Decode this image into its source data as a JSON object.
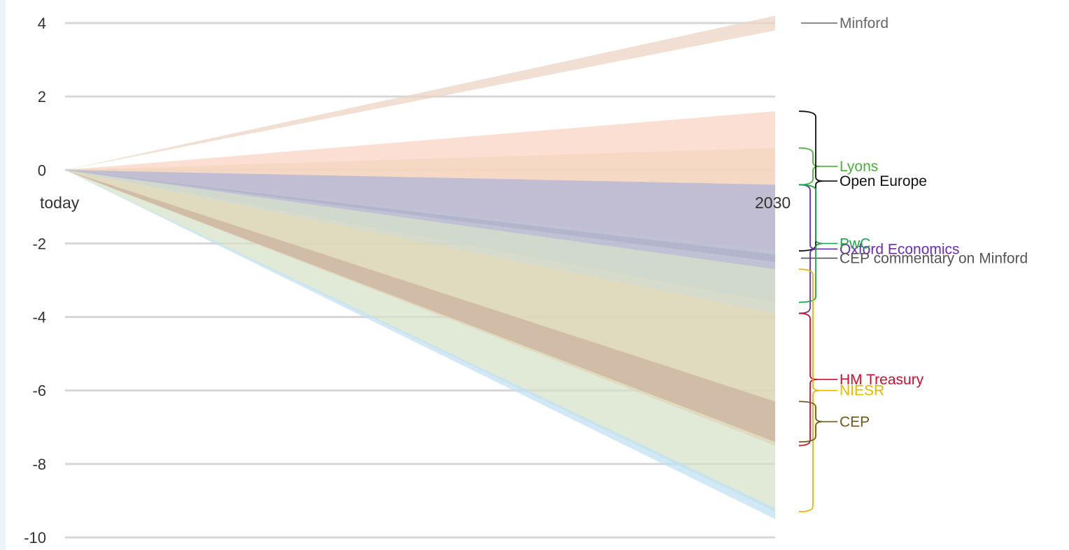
{
  "chart_data": {
    "type": "area",
    "title": "",
    "xlabel": "",
    "ylabel": "",
    "x_labels": {
      "start": "today",
      "end": "2030"
    },
    "ylim": [
      -10,
      4
    ],
    "yticks": [
      "4",
      "2",
      "0",
      "-2",
      "-4",
      "-6",
      "-8",
      "-10"
    ],
    "ytick_values": [
      4,
      2,
      0,
      -2,
      -4,
      -6,
      -8,
      -10
    ],
    "grid": true,
    "series": [
      {
        "name": "Minford",
        "range": [
          3.8,
          4.2
        ],
        "color": "#ebd3c3",
        "label_color": "#666666"
      },
      {
        "name": "Lyons",
        "range": [
          -0.4,
          0.6
        ],
        "color": "#e6e1b8",
        "label_color": "#4caf3a"
      },
      {
        "name": "Open Europe",
        "range": [
          -2.2,
          1.6
        ],
        "color": "#f8d3c0",
        "label_color": "#111111"
      },
      {
        "name": "Oxford Economics",
        "range": [
          -3.9,
          -0.4
        ],
        "color": "#c9b3cf",
        "label_color": "#6a2db0"
      },
      {
        "name": "CEP commentary on Minford",
        "range": [
          -2.5,
          -2.3
        ],
        "color": "#8c8ca3",
        "label_color": "#555555"
      },
      {
        "name": "PwC",
        "range": [
          -3.6,
          -0.4
        ],
        "color": "#b9bed4",
        "label_color": "#1fa84a"
      },
      {
        "name": "HM Treasury",
        "range": [
          -7.5,
          -3.9
        ],
        "color": "#f6b38a",
        "label_color": "#c8102e"
      },
      {
        "name": "NIESR",
        "range": [
          -9.3,
          -2.7
        ],
        "color": "#d5e2c6",
        "label_color": "#e6b800"
      },
      {
        "name": "CEP",
        "range": [
          -7.4,
          -6.3
        ],
        "color": "#cbb0a0",
        "label_color": "#6b5a1a"
      },
      {
        "name": "",
        "range": [
          -9.5,
          -9.2
        ],
        "color": "#bfe1f3",
        "label_color": ""
      }
    ]
  }
}
